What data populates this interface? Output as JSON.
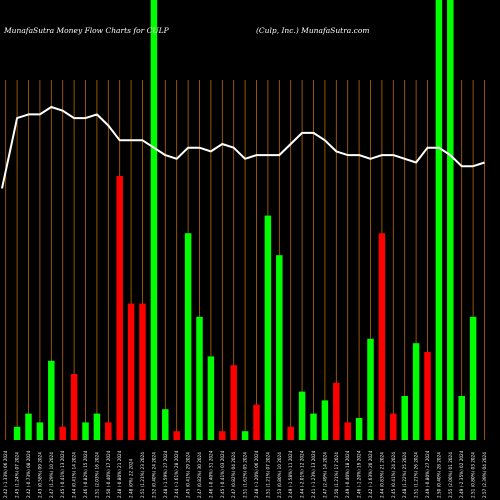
{
  "chart_data": {
    "type": "bar",
    "title_left": "MunafaSutra  Money Flow  Charts for CULP",
    "title_right": "(Culp, Inc.) MunafaSutra.com",
    "colors": {
      "background": "#000000",
      "up": "#00ff00",
      "down": "#ff0000",
      "grid": "#b86a00",
      "line": "#ffffff"
    },
    "ylim": [
      0,
      100
    ],
    "categories": [
      "2.42 (-1.33%) 06 2024",
      "2.45 (1.24%) 07 2024",
      "2.42 (-0.73%) 08 2024",
      "2.43 (0.58%) 09 2024",
      "2.47 (1.29%) 10 2024",
      "2.45 (-0.41%) 13 2024",
      "2.44 (0.41%) 14 2024",
      "2.46 (-0.82%) 15 2024",
      "2.51 (2.03%) 16 2024",
      "2.50 (-0.40%) 17 2024",
      "2.48 (-0.80%) 21 2024",
      "2.48 (0%) 22 2024",
      "2.51 (1.21%) 23 2024",
      "2.52 (0.40%) 24 2024",
      "2.48 (-1.59%) 27 2024",
      "2.44 (-1.61%) 28 2024",
      "2.45 (0.41%) 29 2024",
      "2.47 (0.82%) 30 2024",
      "2.46 (-0.40%) 31 2024",
      "2.45 (-0.41%) 03 2024",
      "2.47 (0.82%) 04 2024",
      "2.51 (1.62%) 05 2024",
      "2.48 (-1.20%) 06 2024",
      "2.51 (1.21%) 07 2024",
      "2.53 (0.80%) 10 2024",
      "2.49 (-1.58%) 11 2024",
      "2.44 (-2.01%) 12 2024",
      "2.41 (-1.23%) 13 2024",
      "2.47 (2.49%) 14 2024",
      "2.50 (1.21%) 17 2024",
      "2.49 (-0.40%) 18 2024",
      "2.46 (-1.20%) 19 2024",
      "2.42 (-1.63%) 20 2024",
      "2.44 (0.83%) 21 2024",
      "2.45 (0.41%) 24 2024",
      "2.48 (1.22%) 25 2024",
      "2.51 (1.21%) 26 2024",
      "2.49 (-0.80%) 27 2024",
      "2.50 (0.40%) 28 2024",
      "2.55 (2.00%) 01 2024",
      "2.49 (-2.35%) 02 2024",
      "2.51 (0.80%) 03 2024",
      "2.57 (2.39%) 04 2024"
    ],
    "series": [
      {
        "direction": [
          "up",
          "up",
          "up",
          "up",
          "up",
          "down",
          "down",
          "up",
          "up",
          "down",
          "down",
          "down",
          "down",
          "up",
          "up",
          "down",
          "up",
          "up",
          "up",
          "down",
          "down",
          "up",
          "down",
          "up",
          "up",
          "down",
          "up",
          "up",
          "up",
          "down",
          "down",
          "up",
          "up",
          "down",
          "down",
          "up",
          "up",
          "down",
          "up",
          "up",
          "up",
          "up",
          "up"
        ],
        "values": [
          0,
          3,
          6,
          4,
          18,
          3,
          15,
          4,
          6,
          4,
          60,
          31,
          31,
          100,
          7,
          2,
          47,
          28,
          19,
          2,
          17,
          2,
          8,
          51,
          42,
          3,
          11,
          6,
          9,
          13,
          4,
          5,
          23,
          47,
          6,
          10,
          22,
          20,
          100,
          100,
          10,
          28,
          0
        ]
      }
    ],
    "line": {
      "values": [
        68,
        87,
        88,
        88,
        90,
        89,
        87,
        87,
        88,
        85,
        81,
        81,
        81,
        79,
        77,
        76,
        79,
        79,
        78,
        80,
        79,
        76,
        77,
        77,
        77,
        80,
        83,
        83,
        81,
        78,
        77,
        77,
        76,
        77,
        77,
        76,
        75,
        79,
        79,
        77,
        74,
        74,
        75
      ]
    }
  }
}
